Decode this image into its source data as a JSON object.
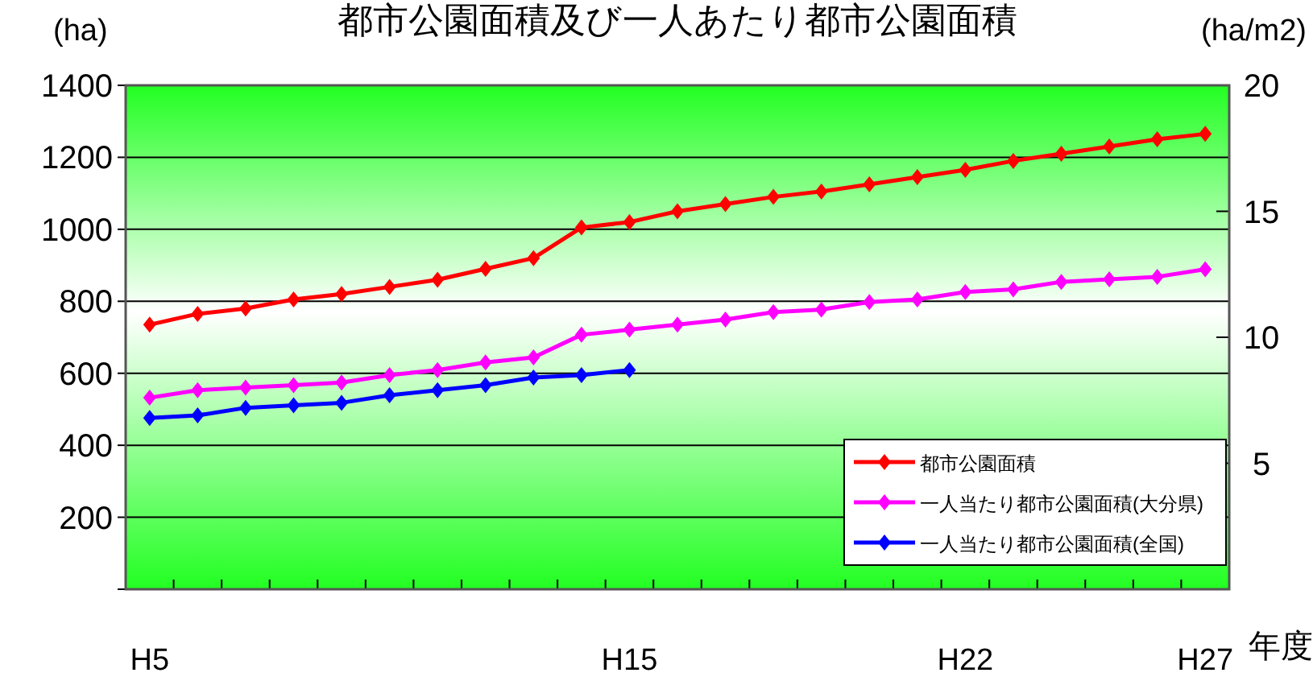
{
  "chart_data": {
    "type": "line",
    "title": "都市公園面積及び一人あたり都市公園面積",
    "ylabel": "(ha)",
    "y2label": "(ha/m2)",
    "xlabel": "年度",
    "categories": [
      "H5",
      null,
      null,
      null,
      null,
      null,
      null,
      null,
      null,
      null,
      "H15",
      null,
      null,
      null,
      null,
      null,
      null,
      "H22",
      null,
      null,
      null,
      null,
      "H27"
    ],
    "series": [
      {
        "name": "都市公園面積",
        "color": "#ff0000",
        "values": [
          735,
          765,
          780,
          805,
          820,
          840,
          860,
          890,
          920,
          1005,
          1020,
          1050,
          1070,
          1090,
          1105,
          1125,
          1145,
          1165,
          1190,
          1210,
          1230,
          1250,
          1265
        ]
      },
      {
        "name": "一人当たり都市公園面積(大分県)",
        "color": "#ff00ff",
        "axis": "y2",
        "values": [
          7.6,
          7.9,
          8.0,
          8.1,
          8.2,
          8.5,
          8.7,
          9.0,
          9.2,
          10.1,
          10.3,
          10.5,
          10.7,
          11.0,
          11.1,
          11.4,
          11.5,
          11.8,
          11.9,
          12.2,
          12.3,
          12.4,
          12.7
        ]
      },
      {
        "name": "一人当たり都市公園面積(全国)",
        "color": "#0000ff",
        "axis": "y2",
        "values": [
          6.8,
          6.9,
          7.2,
          7.3,
          7.4,
          7.7,
          7.9,
          8.1,
          8.4,
          8.5,
          8.7,
          null,
          null,
          null,
          null,
          null,
          null,
          null,
          null,
          null,
          null,
          null,
          null
        ]
      }
    ],
    "ylim": [
      0,
      1400
    ],
    "yticks": [
      {
        "value": 0,
        "label": null
      },
      200,
      400,
      600,
      800,
      1000,
      1200,
      1400
    ],
    "y2lim": [
      0,
      20
    ],
    "y2ticks": [
      5,
      10,
      15,
      20
    ],
    "grid": "y",
    "legend": "bottom right",
    "marker": "diamond",
    "line_style": "solid"
  }
}
